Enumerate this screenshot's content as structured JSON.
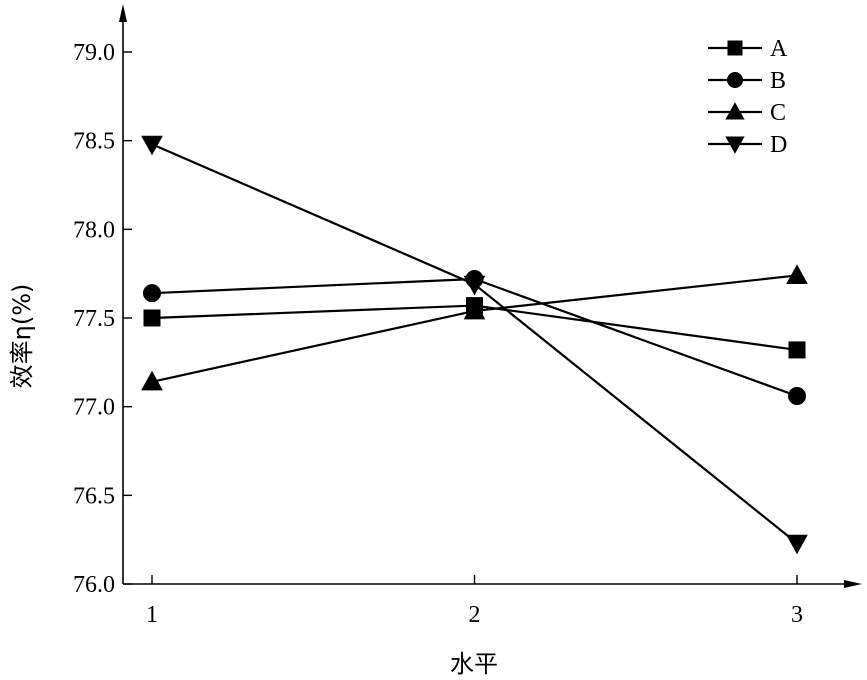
{
  "chart_data": {
    "type": "line",
    "xlabel": "水平",
    "ylabel": "效率η(%)",
    "categories": [
      "1",
      "2",
      "3"
    ],
    "x": [
      1,
      2,
      3
    ],
    "xlim": [
      0.9,
      3.2
    ],
    "ylim": [
      76.0,
      79.0
    ],
    "yticks": [
      "76.0",
      "76.5",
      "77.0",
      "77.5",
      "78.0",
      "78.5",
      "79.0"
    ],
    "grid": false,
    "legend": "top-right",
    "series": [
      {
        "name": "A",
        "marker": "square",
        "values": [
          77.5,
          77.57,
          77.32
        ]
      },
      {
        "name": "B",
        "marker": "circle",
        "values": [
          77.64,
          77.72,
          77.06
        ]
      },
      {
        "name": "C",
        "marker": "triangle-up",
        "values": [
          77.14,
          77.54,
          77.74
        ]
      },
      {
        "name": "D",
        "marker": "triangle-down",
        "values": [
          78.48,
          77.69,
          76.23
        ]
      }
    ],
    "colors": {
      "line": "#000000",
      "background": "#ffffff"
    }
  }
}
